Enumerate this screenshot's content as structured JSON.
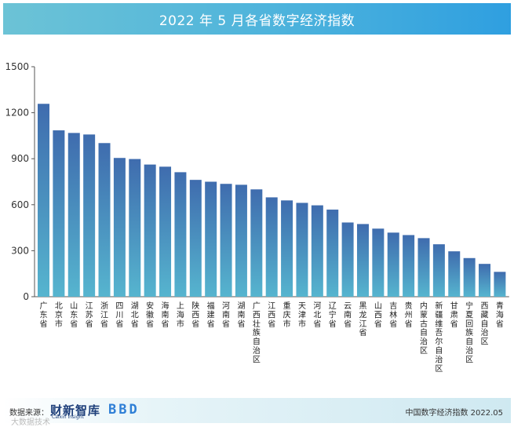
{
  "chart_data": {
    "type": "bar",
    "title": "2022 年 5 月各省数字经济指数",
    "ylim": [
      0,
      1500
    ],
    "yticks": [
      0,
      300,
      600,
      900,
      1200,
      1500
    ],
    "categories": [
      "广东省",
      "北京市",
      "山东省",
      "江苏省",
      "浙江省",
      "四川省",
      "湖北省",
      "安徽省",
      "海南省",
      "上海市",
      "陕西省",
      "福建省",
      "河南省",
      "湖南省",
      "广西壮族自治区",
      "江西省",
      "重庆市",
      "天津市",
      "河北省",
      "辽宁省",
      "云南省",
      "黑龙江省",
      "山西省",
      "吉林省",
      "贵州省",
      "内蒙古自治区",
      "新疆维吾尔自治区",
      "甘肃省",
      "宁夏回族自治区",
      "西藏自治区",
      "青海省"
    ],
    "values": [
      1258,
      1085,
      1068,
      1058,
      1002,
      905,
      898,
      862,
      848,
      812,
      762,
      750,
      736,
      730,
      700,
      648,
      628,
      612,
      596,
      568,
      484,
      474,
      444,
      418,
      402,
      382,
      342,
      296,
      252,
      214,
      162
    ],
    "bar_color_top": "#3f6cae",
    "bar_color_bottom": "#56b5cf",
    "grid": false
  },
  "footer": {
    "source_label": "数据来源：",
    "brand_primary": "财新智库",
    "brand_primary_sub": "Caixin Insight",
    "brand_secondary": "BBD",
    "credit": "中国数字经济指数 2022.05",
    "watermark": "大数据技术"
  }
}
